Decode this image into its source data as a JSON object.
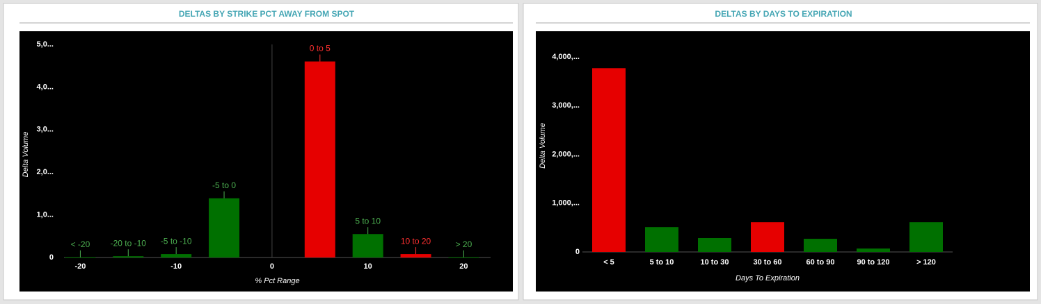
{
  "chart_data": [
    {
      "type": "bar",
      "title": "DELTAS BY STRIKE PCT AWAY FROM SPOT",
      "x_label": "% Pct Range",
      "y_label": "Delta Volume",
      "categories": [
        "< -20",
        "-20 to -10",
        "-5 to -10",
        "-5 to 0",
        "0 to 5",
        "5 to 10",
        "10 to 20",
        "> 20"
      ],
      "x": [
        -20,
        -15,
        -10,
        -5,
        5,
        10,
        15,
        20
      ],
      "values": [
        5,
        30,
        80,
        1390,
        4600,
        550,
        80,
        5
      ],
      "colors": [
        "#007000",
        "#007000",
        "#007000",
        "#007000",
        "#e60000",
        "#007000",
        "#e60000",
        "#007000"
      ],
      "xlim": [
        -21.7,
        22.8
      ],
      "xticks": [
        -20,
        -10,
        0,
        10,
        20
      ],
      "x_zero_line": true,
      "ylim": [
        0,
        5000
      ],
      "yticks": [
        0,
        {
          "value": 1000,
          "label": "1,0..."
        },
        {
          "value": 2000,
          "label": "2,0..."
        },
        {
          "value": 3000,
          "label": "3,0..."
        },
        {
          "value": 4000,
          "label": "4,0..."
        },
        {
          "value": 5000,
          "label": "5,0..."
        }
      ],
      "data_labels": true
    },
    {
      "type": "bar",
      "title": "DELTAS BY DAYS TO EXPIRATION",
      "x_label": "Days To Expiration",
      "y_label": "Delta Volume",
      "categories": [
        "< 5",
        "5 to 10",
        "10 to 30",
        "30 to 60",
        "60 to 90",
        "90 to 120",
        "> 120"
      ],
      "values": [
        3770,
        510,
        285,
        610,
        270,
        70,
        610
      ],
      "colors": [
        "#e60000",
        "#007000",
        "#007000",
        "#e60000",
        "#007000",
        "#007000",
        "#007000"
      ],
      "ylim": [
        0,
        4500
      ],
      "yticks": [
        0,
        {
          "value": 1000,
          "label": "1,000,..."
        },
        {
          "value": 2000,
          "label": "2,000,..."
        },
        {
          "value": 3000,
          "label": "3,000,..."
        },
        {
          "value": 4000,
          "label": "4,000,..."
        }
      ],
      "data_labels": false
    }
  ]
}
